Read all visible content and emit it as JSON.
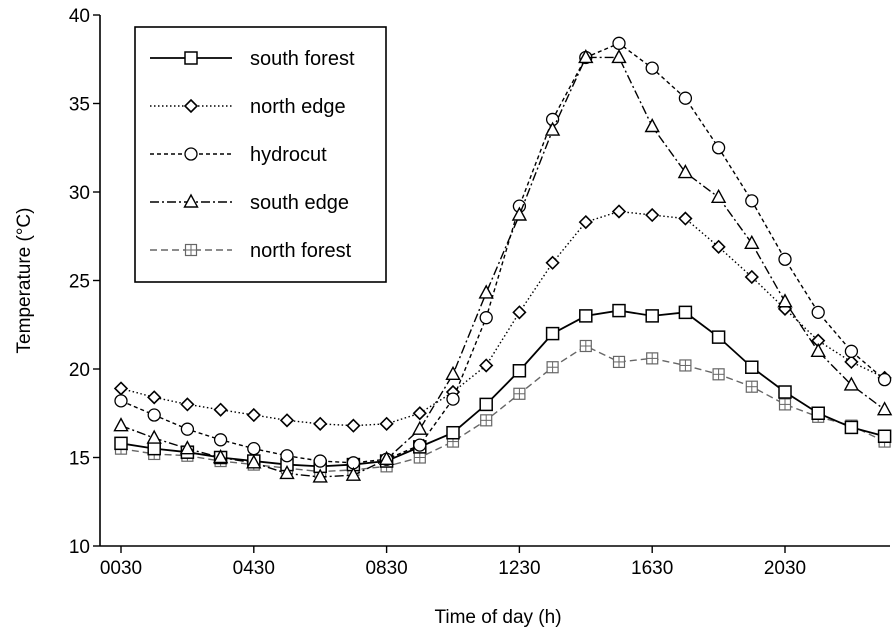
{
  "chart_data": {
    "type": "line",
    "title": "",
    "xlabel": "Time of day (h)",
    "ylabel": "Temperature (°C)",
    "ylim": [
      10,
      40
    ],
    "yticks": [
      10,
      15,
      20,
      25,
      30,
      35,
      40
    ],
    "xlim": [
      0.5,
      23.7
    ],
    "xticks": [
      {
        "value": 0.5,
        "label": "0030"
      },
      {
        "value": 4.5,
        "label": "0430"
      },
      {
        "value": 8.5,
        "label": "0830"
      },
      {
        "value": 12.5,
        "label": "1230"
      },
      {
        "value": 16.5,
        "label": "1630"
      },
      {
        "value": 20.5,
        "label": "2030"
      }
    ],
    "x": [
      0.5,
      1.5,
      2.5,
      3.5,
      4.5,
      5.5,
      6.5,
      7.5,
      8.5,
      9.5,
      10.5,
      11.5,
      12.5,
      13.5,
      14.5,
      15.5,
      16.5,
      17.5,
      18.5,
      19.5,
      20.5,
      21.5,
      22.5,
      23.5
    ],
    "legend_position": "top-left",
    "grid": false,
    "series": [
      {
        "name": "south forest",
        "marker": "square",
        "dash": "solid",
        "values": [
          15.8,
          15.5,
          15.3,
          15.0,
          14.8,
          14.6,
          14.5,
          14.6,
          14.8,
          15.6,
          16.4,
          18.0,
          19.9,
          22.0,
          23.0,
          23.3,
          23.0,
          23.2,
          21.8,
          20.1,
          18.7,
          17.5,
          16.7,
          16.2
        ]
      },
      {
        "name": "north edge",
        "marker": "diamond",
        "dash": "dotted",
        "values": [
          18.9,
          18.4,
          18.0,
          17.7,
          17.4,
          17.1,
          16.9,
          16.8,
          16.9,
          17.5,
          18.7,
          20.2,
          23.2,
          26.0,
          28.3,
          28.9,
          28.7,
          28.5,
          26.9,
          25.2,
          23.4,
          21.6,
          20.4,
          19.5
        ]
      },
      {
        "name": "hydrocut",
        "marker": "circle",
        "dash": "shortdash",
        "values": [
          18.2,
          17.4,
          16.6,
          16.0,
          15.5,
          15.1,
          14.8,
          14.7,
          14.9,
          15.7,
          18.3,
          22.9,
          29.2,
          34.1,
          37.6,
          38.4,
          37.0,
          35.3,
          32.5,
          29.5,
          26.2,
          23.2,
          21.0,
          19.4
        ]
      },
      {
        "name": "south edge",
        "marker": "triangle",
        "dash": "dashdot",
        "values": [
          16.8,
          16.1,
          15.5,
          15.0,
          14.7,
          14.1,
          13.9,
          14.0,
          14.9,
          16.6,
          19.7,
          24.3,
          28.7,
          33.5,
          37.6,
          37.6,
          33.7,
          31.1,
          29.7,
          27.1,
          23.8,
          21.0,
          19.1,
          17.7
        ]
      },
      {
        "name": "north forest",
        "marker": "crosssquare",
        "dash": "longdash",
        "values": [
          15.5,
          15.2,
          15.1,
          14.8,
          14.6,
          14.4,
          14.2,
          14.3,
          14.5,
          15.0,
          15.9,
          17.1,
          18.6,
          20.1,
          21.3,
          20.4,
          20.6,
          20.2,
          19.7,
          19.0,
          18.0,
          17.3,
          16.8,
          15.9
        ]
      }
    ]
  }
}
